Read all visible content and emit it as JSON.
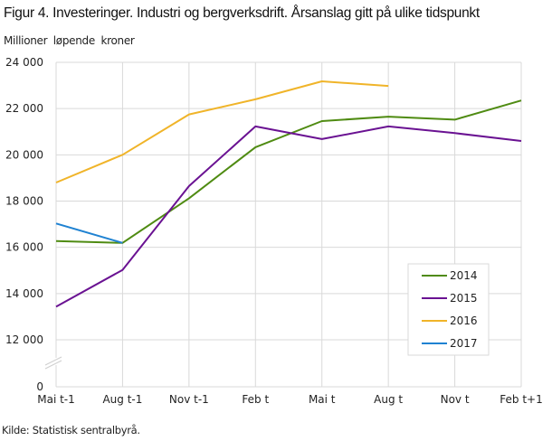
{
  "title": "Figur 4. Investeringer. Industri og bergverksdrift. Årsanslag gitt på ulike tidspunkt",
  "y_axis_label": "Millioner løpende kroner",
  "source": "Kilde: Statistisk sentralbyrå.",
  "colors": {
    "2014": "#4f8b12",
    "2015": "#6a1292",
    "2016": "#f0b429",
    "2017": "#1f82d2",
    "grid": "#d9d9d9"
  },
  "chart_data": {
    "type": "line",
    "title": "Figur 4. Investeringer. Industri og bergverksdrift. Årsanslag gitt på ulike tidspunkt",
    "xlabel": "",
    "ylabel": "Millioner løpende kroner",
    "categories": [
      "Mai t-1",
      "Aug t-1",
      "Nov t-1",
      "Feb t",
      "Mai t",
      "Aug t",
      "Nov t",
      "Feb t+1"
    ],
    "y_ticks": [
      "0",
      "12 000",
      "14 000",
      "16 000",
      "18 000",
      "20 000",
      "22 000",
      "24 000"
    ],
    "ylim": [
      0,
      24000
    ],
    "axis_break": "between 0 and 12 000",
    "grid": true,
    "legend_position": "lower right inside",
    "series": [
      {
        "name": "2014",
        "values": [
          16270,
          16190,
          18120,
          20330,
          21460,
          21650,
          21520,
          22350
        ]
      },
      {
        "name": "2015",
        "values": [
          13430,
          15020,
          18650,
          21230,
          20680,
          21230,
          20940,
          20600
        ]
      },
      {
        "name": "2016",
        "values": [
          18800,
          20000,
          21750,
          22400,
          23180,
          22980,
          null,
          null
        ]
      },
      {
        "name": "2017",
        "values": [
          17030,
          16190,
          null,
          null,
          null,
          null,
          null,
          null
        ]
      }
    ]
  }
}
